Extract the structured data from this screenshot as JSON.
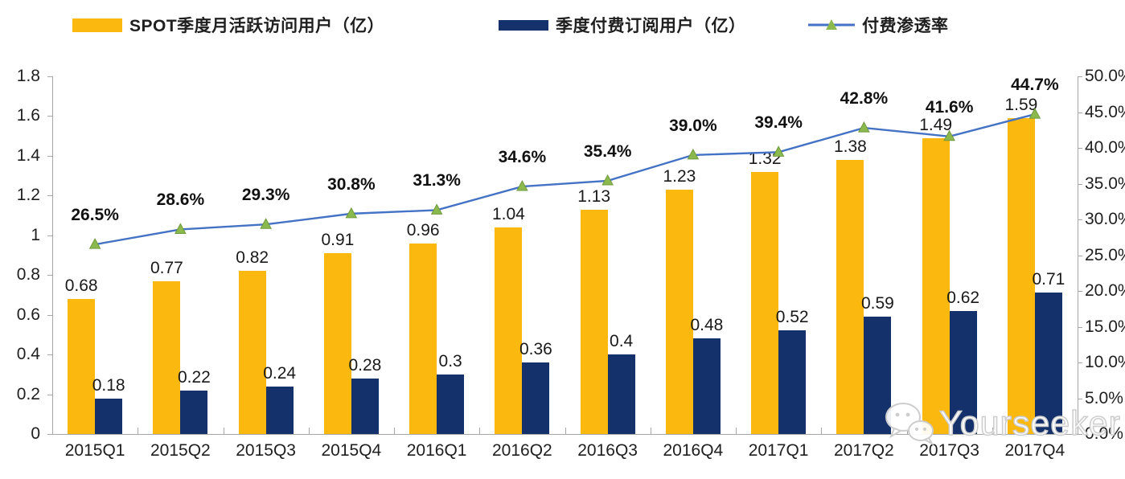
{
  "watermark": {
    "text": "Yourseeker",
    "icon": "wechat-chat-bubbles-icon"
  },
  "chart_data": {
    "type": "combo_bar_line",
    "title": "",
    "xlabel": "",
    "ylabel_left": "",
    "ylabel_right": "",
    "grid": "off",
    "legend_position": "top",
    "categories": [
      "2015Q1",
      "2015Q2",
      "2015Q3",
      "2015Q4",
      "2016Q1",
      "2016Q2",
      "2016Q3",
      "2016Q4",
      "2017Q1",
      "2017Q2",
      "2017Q3",
      "2017Q4"
    ],
    "series": [
      {
        "name": "SPOT季度月活跃访问用户（亿）",
        "type": "bar",
        "axis": "left",
        "color": "#FBB80F",
        "values": [
          0.68,
          0.77,
          0.82,
          0.91,
          0.96,
          1.04,
          1.13,
          1.23,
          1.32,
          1.38,
          1.49,
          1.59
        ],
        "data_labels": [
          "0.68",
          "0.77",
          "0.82",
          "0.91",
          "0.96",
          "1.04",
          "1.13",
          "1.23",
          "1.32",
          "1.38",
          "1.49",
          "1.59"
        ]
      },
      {
        "name": "季度付费订阅用户（亿）",
        "type": "bar",
        "axis": "left",
        "color": "#14316B",
        "values": [
          0.18,
          0.22,
          0.24,
          0.28,
          0.3,
          0.36,
          0.4,
          0.48,
          0.52,
          0.59,
          0.62,
          0.71
        ],
        "data_labels": [
          "0.18",
          "0.22",
          "0.24",
          "0.28",
          "0.3",
          "0.36",
          "0.4",
          "0.48",
          "0.52",
          "0.59",
          "0.62",
          "0.71"
        ]
      },
      {
        "name": "付费渗透率",
        "type": "line",
        "axis": "right",
        "color": "#4472C4",
        "marker": "triangle",
        "marker_color": "#8CB94E",
        "values": [
          26.5,
          28.6,
          29.3,
          30.8,
          31.3,
          34.6,
          35.4,
          39.0,
          39.4,
          42.8,
          41.6,
          44.7
        ],
        "data_labels": [
          "26.5%",
          "28.6%",
          "29.3%",
          "30.8%",
          "31.3%",
          "34.6%",
          "35.4%",
          "39.0%",
          "39.4%",
          "42.8%",
          "41.6%",
          "44.7%"
        ]
      }
    ],
    "left_axis": {
      "min": 0,
      "max": 1.8,
      "tick_labels": [
        "1.8",
        "1.6",
        "1.4",
        "1.2",
        "1",
        "0.8",
        "0.6",
        "0.4",
        "0.2",
        "0"
      ]
    },
    "right_axis": {
      "min": 0,
      "max": 50,
      "tick_labels": [
        "50.0%",
        "45.0%",
        "40.0%",
        "35.0%",
        "30.0%",
        "25.0%",
        "20.0%",
        "15.0%",
        "10.0%",
        "5.0%",
        "0.0%"
      ]
    }
  }
}
